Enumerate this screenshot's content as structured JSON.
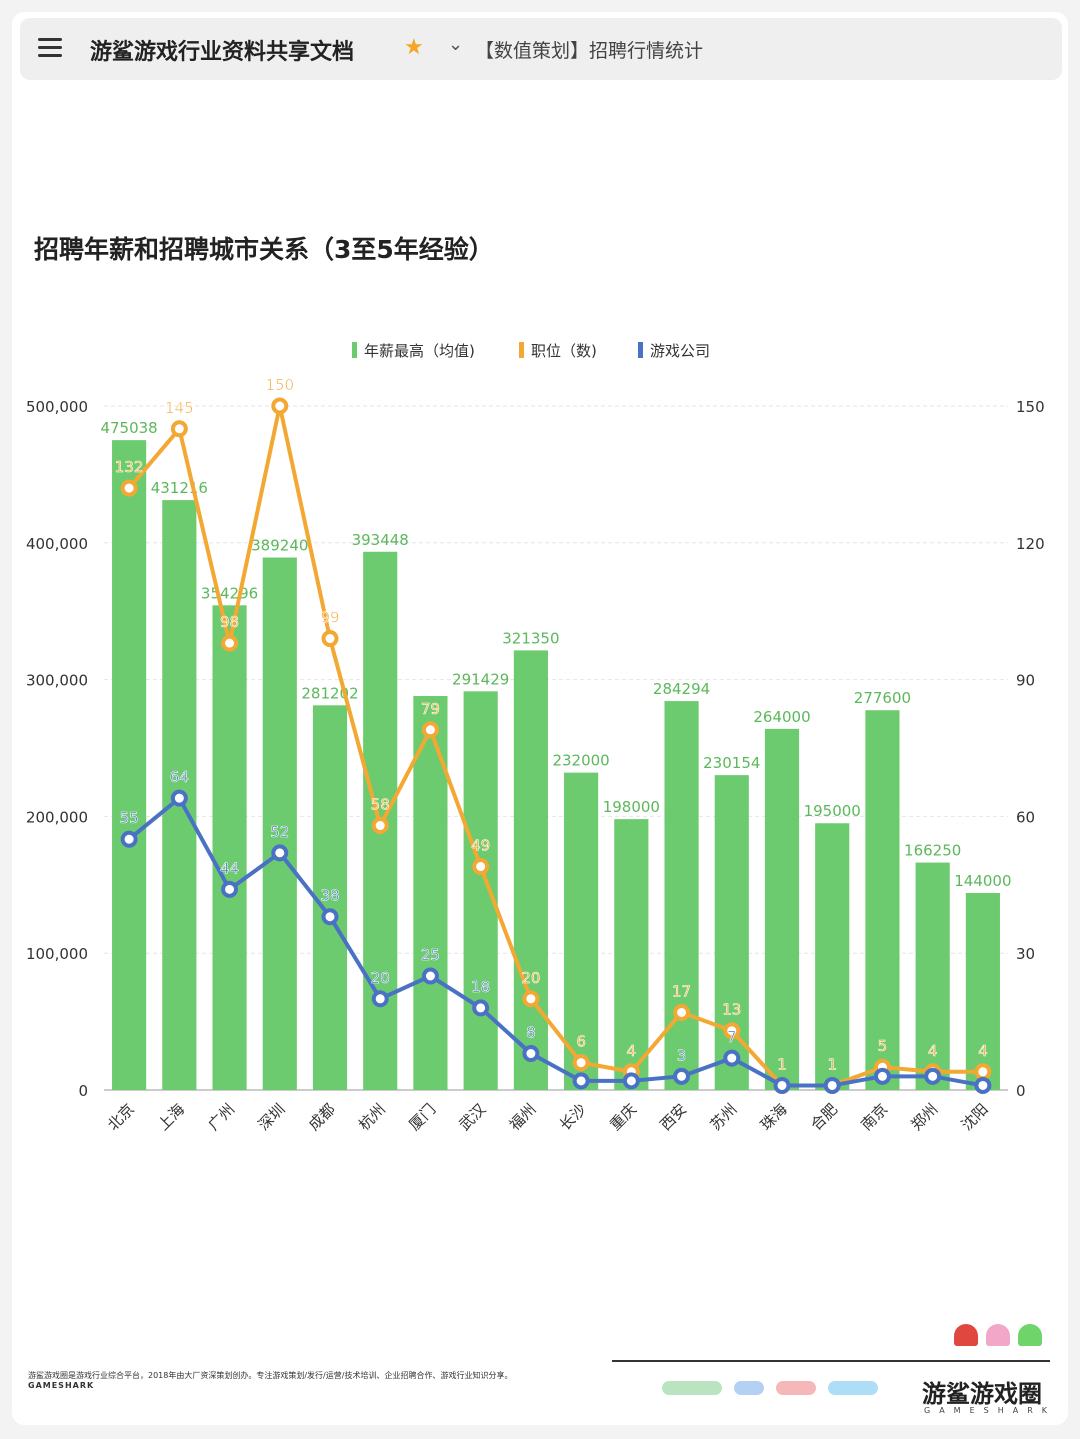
{
  "header": {
    "doc_title": "游鲨游戏行业资料共享文档",
    "page_name": "【数值策划】招聘行情统计"
  },
  "chart_title": "招聘年薪和招聘城市关系（3至5年经验）",
  "chart_data": {
    "type": "bar",
    "title": "招聘年薪和招聘城市关系（3至5年经验）",
    "categories": [
      "北京",
      "上海",
      "广州",
      "深圳",
      "成都",
      "杭州",
      "厦门",
      "武汉",
      "福州",
      "长沙",
      "重庆",
      "西安",
      "苏州",
      "珠海",
      "合肥",
      "南京",
      "郑州",
      "沈阳"
    ],
    "series": [
      {
        "name": "年薪最高（均值)",
        "type": "bar",
        "axis": "left",
        "color": "#6ccb6e",
        "values": [
          475038,
          431216,
          354296,
          389240,
          281202,
          393448,
          288000,
          291429,
          321350,
          232000,
          198000,
          284294,
          230154,
          264000,
          195000,
          277600,
          166250,
          144000
        ]
      },
      {
        "name": "职位（数)",
        "type": "line",
        "axis": "right",
        "color": "#f3a833",
        "values": [
          132,
          145,
          98,
          150,
          99,
          58,
          79,
          49,
          20,
          6,
          4,
          17,
          13,
          1,
          1,
          5,
          4,
          4
        ]
      },
      {
        "name": "游戏公司",
        "type": "line",
        "axis": "right",
        "color": "#4a72c4",
        "values": [
          55,
          64,
          44,
          52,
          38,
          20,
          25,
          18,
          8,
          2,
          2,
          3,
          7,
          1,
          1,
          3,
          3,
          1
        ]
      }
    ],
    "bar_labels": [
      "475038",
      "431216",
      "354296",
      "389240",
      "281202",
      "393448",
      "",
      "291429",
      "321350",
      "232000",
      "198000",
      "284294",
      "230154",
      "264000",
      "195000",
      "277600",
      "166250",
      "144000"
    ],
    "position_labels": [
      "132",
      "145",
      "98",
      "150",
      "99",
      "58",
      "79",
      "49",
      "20",
      "6",
      "4",
      "17",
      "13",
      "1",
      "1",
      "5",
      "4",
      "4"
    ],
    "company_labels": [
      "55",
      "64",
      "44",
      "52",
      "38",
      "20",
      "25",
      "18",
      "8",
      "",
      "",
      "3",
      "7",
      "",
      "",
      "",
      "",
      ""
    ],
    "y_left": {
      "min": 0,
      "max": 500000,
      "ticks": [
        "0",
        "100,000",
        "200,000",
        "300,000",
        "400,000",
        "500,000"
      ]
    },
    "y_right": {
      "min": 0,
      "max": 150,
      "ticks": [
        "0",
        "30",
        "60",
        "90",
        "120",
        "150"
      ]
    },
    "legend_position": "top-center",
    "grid": true
  },
  "footer": {
    "description": "游鲨游戏圈是游戏行业综合平台，2018年由大厂资深策划创办。专注游戏策划/发行/运营/技术培训、企业招聘合作、游戏行业知识分享。",
    "brand": "GAMESHARK",
    "logo_main": "游鲨游戏圈",
    "logo_sub": "GAMESHARK"
  },
  "colors": {
    "bar": "#6ccb6e",
    "positions": "#f3a833",
    "companies": "#4a72c4",
    "accent_star": "#f5a623"
  }
}
